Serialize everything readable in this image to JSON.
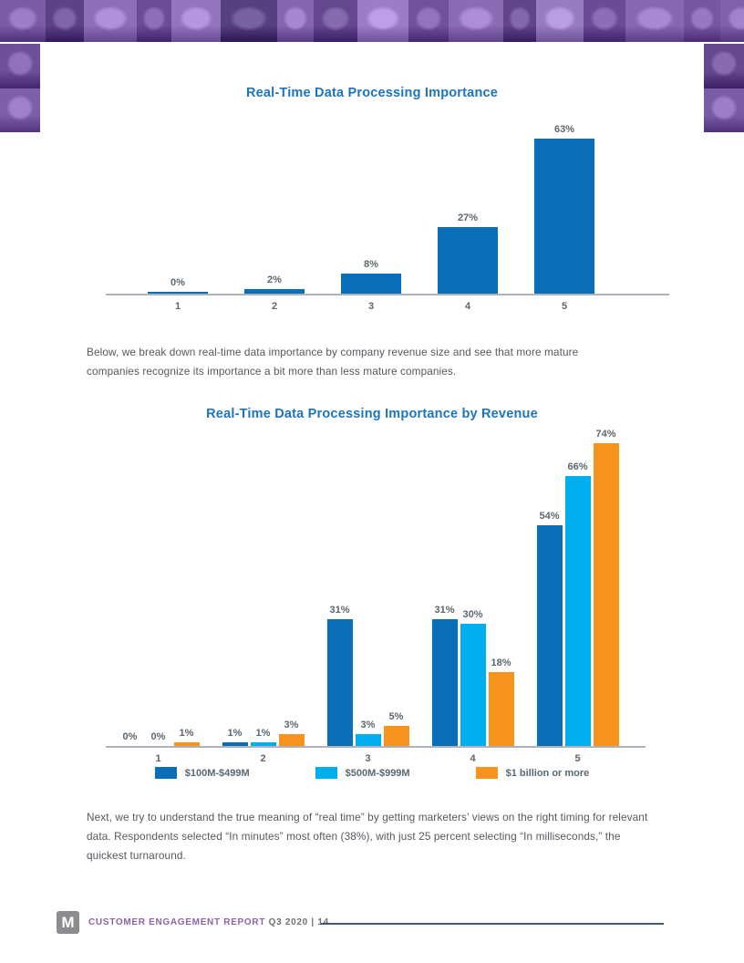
{
  "header": {
    "collage": {
      "description": "purple-tinted photo collage of faces",
      "shades_top": [
        "#7A5BA5",
        "#5D4288",
        "#8D6FB7",
        "#6B4C96",
        "#9374BE",
        "#56407E",
        "#8465AF",
        "#64478E",
        "#9B7CC6",
        "#70519B",
        "#8A6BB4",
        "#604589",
        "#977DC0",
        "#6A4B95",
        "#8667B1",
        "#75569F",
        "#7F60AA"
      ],
      "shades_left": [
        "#6E4F99",
        "#7D5EA8"
      ],
      "shades_right": [
        "#66488F",
        "#7A5BA5"
      ]
    }
  },
  "colors": {
    "title_blue": "#1C75BC",
    "dark_blue": "#0A6EB8",
    "light_blue": "#00AEEF",
    "orange": "#F7941E",
    "label_gray": "#5B6770",
    "body_text": "#54585D",
    "axis_gray": "#ADB3B8",
    "footer_purple": "#8A65AD",
    "footer_gray": "#6E7076",
    "footer_rule": "#47586B",
    "logo_gray": "#8A8C8F"
  },
  "chart_data": [
    {
      "type": "bar",
      "title": "Real-Time Data Processing Importance",
      "categories": [
        "1",
        "2",
        "3",
        "4",
        "5"
      ],
      "values": [
        0,
        2,
        8,
        27,
        63
      ],
      "value_labels": [
        "0%",
        "2%",
        "8%",
        "27%",
        "63%"
      ],
      "xlabel": "",
      "ylabel": "",
      "ylim": [
        0,
        70
      ],
      "grid": false,
      "legend_position": "none",
      "bar_color": "#0A6EB8"
    },
    {
      "type": "bar",
      "title": "Real-Time Data Processing Importance by Revenue",
      "categories": [
        "1",
        "2",
        "3",
        "4",
        "5"
      ],
      "series": [
        {
          "name": "$100M-$499M",
          "color": "#0A6EB8",
          "values": [
            0,
            1,
            31,
            31,
            54
          ],
          "value_labels": [
            "0%",
            "1%",
            "31%",
            "31%",
            "54%"
          ]
        },
        {
          "name": "$500M-$999M",
          "color": "#00AEEF",
          "values": [
            0,
            1,
            3,
            30,
            66
          ],
          "value_labels": [
            "0%",
            "1%",
            "3%",
            "30%",
            "66%"
          ]
        },
        {
          "name": "$1 billion or more",
          "color": "#F7941E",
          "values": [
            1,
            3,
            5,
            18,
            74
          ],
          "value_labels": [
            "1%",
            "3%",
            "5%",
            "18%",
            "74%"
          ]
        }
      ],
      "xlabel": "",
      "ylabel": "",
      "ylim": [
        0,
        80
      ],
      "grid": false,
      "legend_position": "bottom"
    }
  ],
  "paragraphs": {
    "between_charts": "Below, we break down real-time data importance by company revenue size and see that more mature companies recognize its importance a bit more than less mature companies.",
    "after_charts": "Next, we try to understand the true meaning of “real time” by getting marketers’ views on the right timing for relevant data. Respondents selected “In minutes” most often (38%), with just 25 percent selecting “In milliseconds,” the quickest turnaround."
  },
  "footer": {
    "logo_letter": "M",
    "report_name": "CUSTOMER ENGAGEMENT REPORT",
    "edition": "Q3 2020",
    "separator": "|",
    "page_number": "14"
  }
}
